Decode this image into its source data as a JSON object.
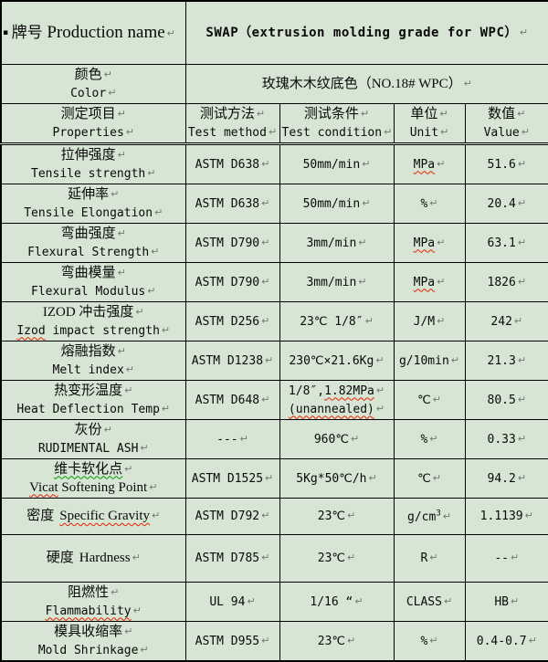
{
  "colors": {
    "background": "#d7e5d4",
    "border": "#000000",
    "text": "#0a0a0a",
    "squiggle_red": "#e82000",
    "squiggle_green": "#009a00",
    "mark": "#6f7b6f"
  },
  "marks": {
    "line_break": "↵",
    "bullet": "▪"
  },
  "title_row": {
    "cn": "牌号",
    "en": "Production name",
    "value": "SWAP（extrusion molding grade for WPC）"
  },
  "color_row": {
    "cn": "颜色",
    "en": "Color",
    "value": "玫瑰木木纹底色（NO.18# WPC）"
  },
  "columns": [
    {
      "cn": "测定项目",
      "en": "Properties"
    },
    {
      "cn": "测试方法",
      "en": "Test method"
    },
    {
      "cn": "测试条件",
      "en": "Test condition"
    },
    {
      "cn": "单位",
      "en": "Unit"
    },
    {
      "cn": "数值",
      "en": "Value"
    }
  ],
  "rows": [
    {
      "cn": "拉伸强度",
      "en": "Tensile strength",
      "method": "ASTM D638",
      "condition": "50mm/min",
      "unit": "MPa",
      "value": "51.6"
    },
    {
      "cn": "延伸率",
      "en": "Tensile Elongation",
      "method": "ASTM D638",
      "condition": "50mm/min",
      "unit": "%",
      "value": "20.4"
    },
    {
      "cn": "弯曲强度",
      "en": "Flexural Strength",
      "method": "ASTM D790",
      "condition": "3mm/min",
      "unit": "MPa",
      "value": "63.1"
    },
    {
      "cn": "弯曲模量",
      "en": "Flexural Modulus",
      "method": "ASTM D790",
      "condition": "3mm/min",
      "unit": "MPa",
      "value": "1826"
    },
    {
      "cn": "IZOD 冲击强度",
      "en_sq": "Izod",
      "en_rest": " impact strength",
      "method": "ASTM D256",
      "condition": "23℃ 1/8″",
      "unit": "J/M",
      "value": "242"
    },
    {
      "cn": "熔融指数",
      "en": "Melt index",
      "method": "ASTM D1238",
      "condition": "230℃×21.6Kg",
      "unit": "g/10min",
      "value": "21.3"
    },
    {
      "cn": "热变形温度",
      "en": "Heat Deflection Temp",
      "method": "ASTM D648",
      "condition_prefix": "1/8″,",
      "condition_sq": "1.82MPa",
      "condition_line2": "(unannealed)",
      "unit": "℃",
      "value": "80.5"
    },
    {
      "cn": "灰份",
      "en": "RUDIMENTAL ASH",
      "method": "---",
      "condition": "960℃",
      "unit": "%",
      "value": "0.33"
    },
    {
      "cn": "维卡软化点",
      "en_sq": "Vicat",
      "en_rest": " Softening Point",
      "method": "ASTM D1525",
      "condition": "5Kg*50℃/h",
      "unit": "℃",
      "value": "94.2"
    },
    {
      "cn": "密度",
      "en": "Specific Gravity",
      "method": "ASTM D792",
      "condition": "23℃",
      "unit": "g/cm",
      "unit_sup": "3",
      "value": "1.1139"
    },
    {
      "cn": "硬度",
      "en": "Hardness",
      "method": "ASTM D785",
      "condition": "23℃",
      "unit": "R",
      "value": "--"
    },
    {
      "cn": "阻燃性",
      "en": "Flammability",
      "method": "UL 94",
      "condition": "1/16 “",
      "unit": "CLASS",
      "value": "HB"
    },
    {
      "cn": "模具收缩率",
      "en": "Mold Shrinkage",
      "method": "ASTM D955",
      "condition": "23℃",
      "unit": "%",
      "value": "0.4-0.7"
    }
  ]
}
